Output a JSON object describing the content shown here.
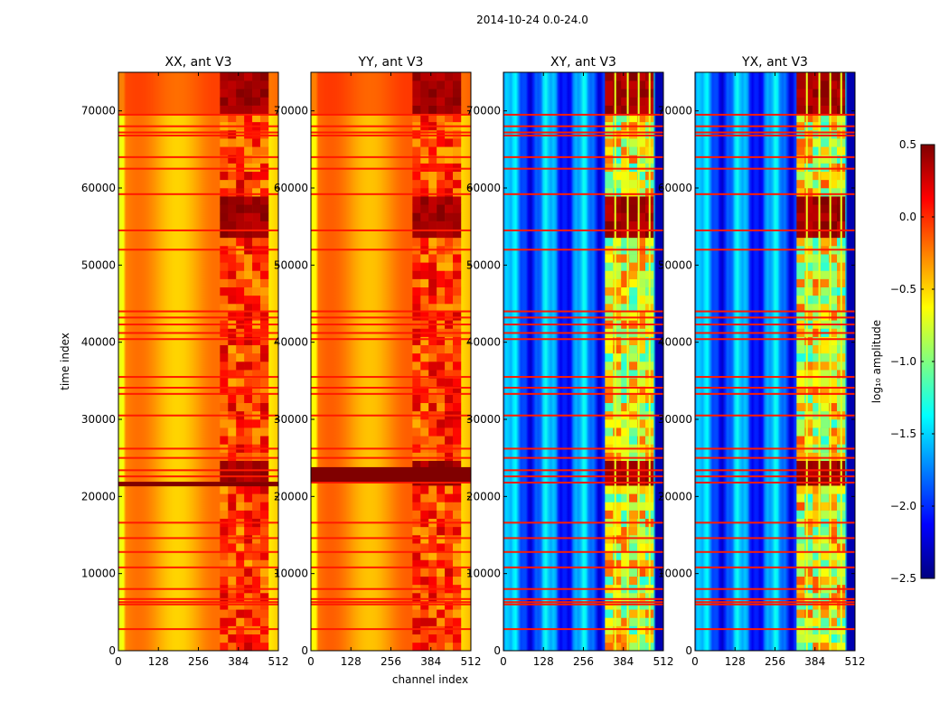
{
  "chart_data": {
    "type": "heatmap",
    "suptitle": "2014-10-24 0.0-24.0",
    "xlabel": "channel index",
    "ylabel": "time index",
    "xlim": [
      0,
      512
    ],
    "ylim": [
      0,
      75000
    ],
    "x_ticks": [
      0,
      128,
      256,
      384,
      512
    ],
    "y_ticks": [
      0,
      10000,
      20000,
      30000,
      40000,
      50000,
      60000,
      70000
    ],
    "x_tick_labels": [
      "0",
      "128",
      "256",
      "384",
      "512"
    ],
    "y_tick_labels": [
      "0",
      "10000",
      "20000",
      "30000",
      "40000",
      "50000",
      "60000",
      "70000"
    ],
    "panels": [
      {
        "title": "XX, ant V3",
        "kind": "parallel",
        "base_log_amplitude": -0.35,
        "rfi_log_amplitude": 0.4
      },
      {
        "title": "YY, ant V3",
        "kind": "parallel",
        "base_log_amplitude": -0.3,
        "rfi_log_amplitude": 0.4
      },
      {
        "title": "XY, ant V3",
        "kind": "cross",
        "base_log_amplitude": -1.8,
        "rfi_log_amplitude": 0.4
      },
      {
        "title": "YX, ant V3",
        "kind": "cross",
        "base_log_amplitude": -1.8,
        "rfi_log_amplitude": 0.4
      }
    ],
    "rfi_channel_range": [
      325,
      480
    ],
    "flagged_time_rows": [
      2800,
      6000,
      6300,
      6700,
      8000,
      10800,
      12800,
      14600,
      16600,
      21800,
      22600,
      23400,
      25000,
      26200,
      30500,
      33300,
      34100,
      35500,
      40400,
      41200,
      42300,
      43200,
      44000,
      52000,
      54500,
      59200,
      62500,
      64000,
      66800,
      67200,
      68000,
      69500
    ],
    "colorbar": {
      "label": "log₁₀ amplitude",
      "range": [
        -2.5,
        0.5
      ],
      "ticks": [
        0.5,
        0.0,
        -0.5,
        -1.0,
        -1.5,
        -2.0,
        -2.5
      ],
      "tick_labels": [
        "0.5",
        "0.0",
        "−0.5",
        "−1.0",
        "−1.5",
        "−2.0",
        "−2.5"
      ],
      "colormap": "jet"
    }
  }
}
